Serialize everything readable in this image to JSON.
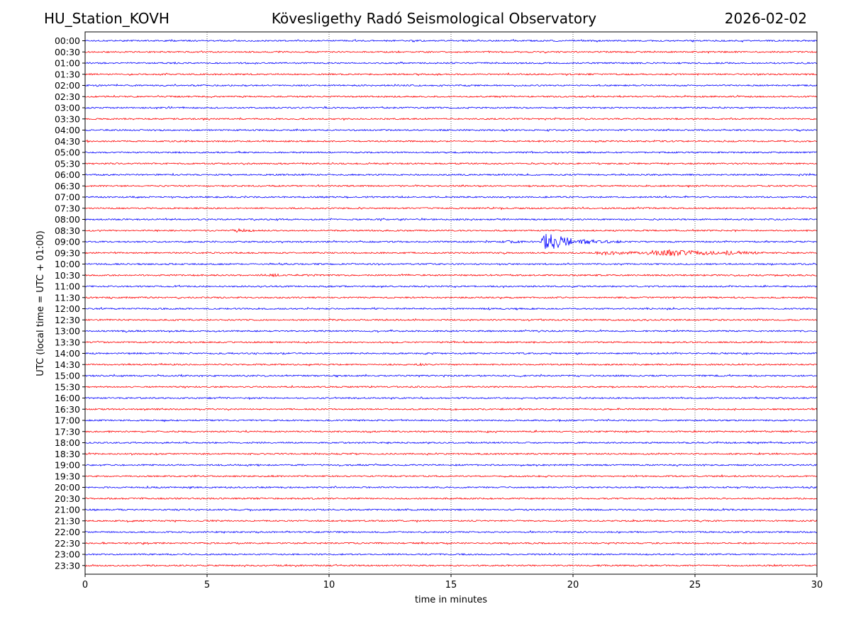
{
  "header": {
    "station": "HU_Station_KOVH",
    "title": "Kövesligethy Radó Seismological Observatory",
    "date": "2026-02-02"
  },
  "chart_data": {
    "type": "line",
    "title": "Kövesligethy Radó Seismological Observatory",
    "xlabel": "time in minutes",
    "ylabel": "UTC (local time = UTC + 01:00)",
    "xlim": [
      0,
      30
    ],
    "xticks": [
      "0",
      "5",
      "10",
      "15",
      "20",
      "25",
      "30"
    ],
    "row_labels": [
      "00:00",
      "00:30",
      "01:00",
      "01:30",
      "02:00",
      "02:30",
      "03:00",
      "03:30",
      "04:00",
      "04:30",
      "05:00",
      "05:30",
      "06:00",
      "06:30",
      "07:00",
      "07:30",
      "08:00",
      "08:30",
      "09:00",
      "09:30",
      "10:00",
      "10:30",
      "11:00",
      "11:30",
      "12:00",
      "12:30",
      "13:00",
      "13:30",
      "14:00",
      "14:30",
      "15:00",
      "15:30",
      "16:00",
      "16:30",
      "17:00",
      "17:30",
      "18:00",
      "18:30",
      "19:00",
      "19:30",
      "20:00",
      "20:30",
      "21:00",
      "21:30",
      "22:00",
      "22:30",
      "23:00",
      "23:30"
    ],
    "series_colors": [
      "#0000ff",
      "#ff0000"
    ],
    "events": [
      {
        "row": "08:30",
        "start_min": 6.0,
        "end_min": 7.0,
        "amplitude": 3.0
      },
      {
        "row": "09:00",
        "start_min": 17.0,
        "end_min": 18.7,
        "amplitude": 2.0
      },
      {
        "row": "09:00",
        "start_min": 18.7,
        "end_min": 20.0,
        "amplitude": 12.0
      },
      {
        "row": "09:00",
        "start_min": 20.0,
        "end_min": 22.0,
        "amplitude": 3.5
      },
      {
        "row": "09:30",
        "start_min": 20.8,
        "end_min": 23.0,
        "amplitude": 3.0
      },
      {
        "row": "09:30",
        "start_min": 23.0,
        "end_min": 26.0,
        "amplitude": 5.0
      },
      {
        "row": "09:30",
        "start_min": 26.0,
        "end_min": 28.0,
        "amplitude": 3.0
      },
      {
        "row": "10:30",
        "start_min": 7.0,
        "end_min": 10.5,
        "amplitude": 2.0
      },
      {
        "row": "07:30",
        "start_min": 22.5,
        "end_min": 23.5,
        "amplitude": 2.0
      },
      {
        "row": "14:30",
        "start_min": 13.5,
        "end_min": 14.2,
        "amplitude": 2.0
      }
    ],
    "grid": "vertical dotted at each x tick"
  }
}
